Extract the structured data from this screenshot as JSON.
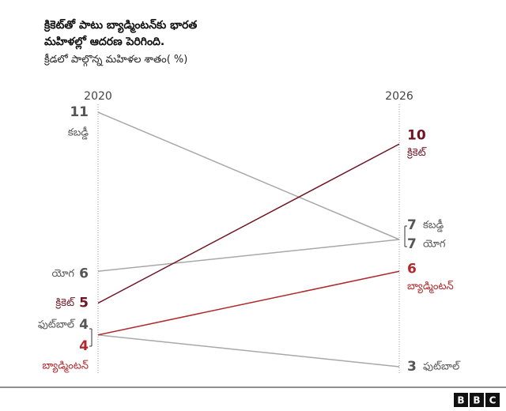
{
  "chart_data": {
    "type": "slope",
    "title": "క్రికెట్‌తో పాటు బ్యాడ్మింటన్‌కు భారత మహిళల్లో ఆదరణ పెరిగింది.",
    "subtitle": "క్రీడలో పాల్గొన్న మహిళల శాతం( %)",
    "categories": [
      "2020",
      "2026"
    ],
    "series": [
      {
        "name": "కబడ్డీ",
        "color": "#a8a8a8",
        "label_color": "#555555",
        "values": [
          11,
          7
        ]
      },
      {
        "name": "యోగ",
        "color": "#a8a8a8",
        "label_color": "#555555",
        "values": [
          6,
          7
        ]
      },
      {
        "name": "క్రికెట్",
        "color": "#6e1423",
        "label_color": "#6e1423",
        "values": [
          5,
          10
        ]
      },
      {
        "name": "ఫుట్‌బాల్",
        "color": "#a8a8a8",
        "label_color": "#555555",
        "values": [
          4,
          3
        ]
      },
      {
        "name": "బ్యాడ్మింటన్",
        "color": "#b0282b",
        "label_color": "#b0282b",
        "values": [
          4,
          6
        ]
      }
    ],
    "logo": [
      "B",
      "B",
      "C"
    ]
  }
}
